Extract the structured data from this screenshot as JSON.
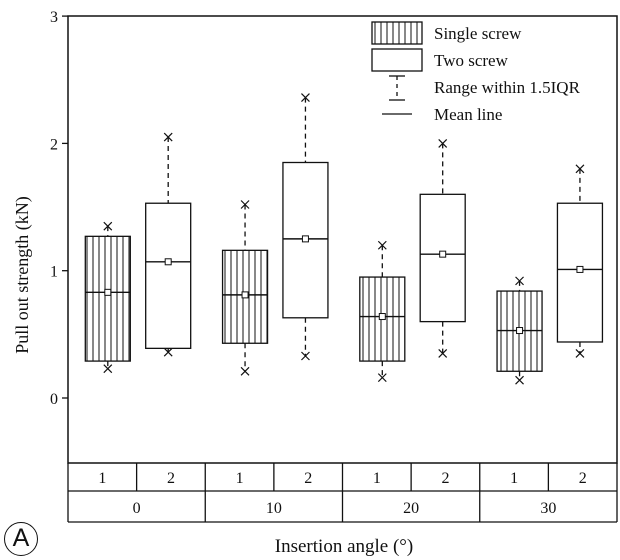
{
  "panel_label": "A",
  "chart_data": {
    "type": "box",
    "title": "",
    "ylabel": "Pull out strength (kN)",
    "xlabel": "Insertion angle (°)",
    "ylim": [
      -0.5,
      3
    ],
    "yticks": [
      "0",
      "1",
      "2",
      "3"
    ],
    "groups": [
      "0",
      "10",
      "20",
      "30"
    ],
    "subgroup_labels": [
      "1",
      "2"
    ],
    "legend": {
      "position": "top-right",
      "entries": [
        {
          "key": "single",
          "label": "Single screw"
        },
        {
          "key": "two",
          "label": "Two screw"
        },
        {
          "key": "range",
          "label": "Range within 1.5IQR"
        },
        {
          "key": "mean",
          "label": "Mean line"
        }
      ]
    },
    "series": [
      {
        "key": "single",
        "pattern": "vertical-hatch",
        "boxes": [
          {
            "group": "0",
            "min": 0.23,
            "q1": 0.29,
            "median": 0.83,
            "q3": 1.27,
            "max": 1.35,
            "mean": 0.83
          },
          {
            "group": "10",
            "min": 0.21,
            "q1": 0.43,
            "median": 0.81,
            "q3": 1.16,
            "max": 1.52,
            "mean": 0.81
          },
          {
            "group": "20",
            "min": 0.16,
            "q1": 0.29,
            "median": 0.64,
            "q3": 0.95,
            "max": 1.2,
            "mean": 0.64
          },
          {
            "group": "30",
            "min": 0.14,
            "q1": 0.21,
            "median": 0.53,
            "q3": 0.84,
            "max": 0.92,
            "mean": 0.53
          }
        ]
      },
      {
        "key": "two",
        "pattern": "none",
        "boxes": [
          {
            "group": "0",
            "min": 0.36,
            "q1": 0.39,
            "median": 1.07,
            "q3": 1.53,
            "max": 2.05,
            "mean": 1.07
          },
          {
            "group": "10",
            "min": 0.33,
            "q1": 0.63,
            "median": 1.25,
            "q3": 1.85,
            "max": 2.36,
            "mean": 1.25
          },
          {
            "group": "20",
            "min": 0.35,
            "q1": 0.6,
            "median": 1.13,
            "q3": 1.6,
            "max": 2.0,
            "mean": 1.13
          },
          {
            "group": "30",
            "min": 0.35,
            "q1": 0.44,
            "median": 1.01,
            "q3": 1.53,
            "max": 1.8,
            "mean": 1.01
          }
        ]
      }
    ]
  }
}
